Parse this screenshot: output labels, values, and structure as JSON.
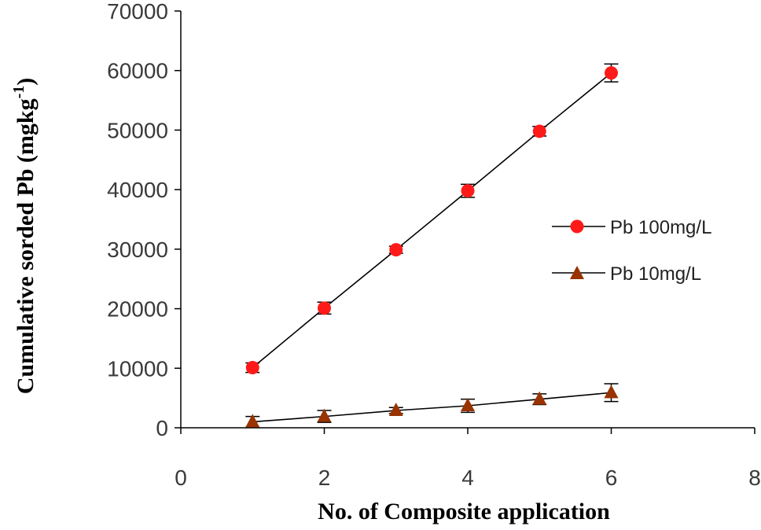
{
  "chart_data": {
    "type": "line",
    "title": "",
    "xlabel": "No. of Composite application",
    "ylabel": "Cumulative sorded Pb (mgkg",
    "ylabel_sup": "-1",
    "ylabel_close": ")",
    "xlim": [
      0,
      8
    ],
    "ylim": [
      0,
      70000
    ],
    "x_ticks": [
      0,
      2,
      4,
      6,
      8
    ],
    "y_ticks": [
      0,
      10000,
      20000,
      30000,
      40000,
      50000,
      60000,
      70000
    ],
    "x_tick_labels": [
      "0",
      "2",
      "4",
      "6",
      "8"
    ],
    "y_tick_labels": [
      "0",
      "10000",
      "20000",
      "30000",
      "40000",
      "50000",
      "60000",
      "70000"
    ],
    "grid": false,
    "legend_position": "right",
    "x": [
      1,
      2,
      3,
      4,
      5,
      6
    ],
    "series": [
      {
        "name": "Pb 100mg/L",
        "marker": "circle",
        "color": "#ff1a1a",
        "values": [
          10100,
          20100,
          29900,
          39800,
          49800,
          59600
        ],
        "errors": [
          800,
          1000,
          600,
          1100,
          800,
          1500
        ]
      },
      {
        "name": "Pb 10mg/L",
        "marker": "triangle",
        "color": "#993300",
        "values": [
          1000,
          1900,
          2900,
          3700,
          4800,
          5900
        ],
        "errors": [
          900,
          1000,
          500,
          1100,
          900,
          1500
        ]
      }
    ]
  }
}
